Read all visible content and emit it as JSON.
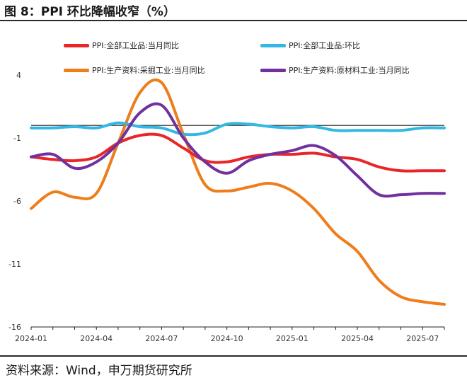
{
  "figure": {
    "title": "图 8：PPI 环比降幅收窄（%）",
    "source": "资料来源：Wind，申万期货研究所"
  },
  "colors": {
    "s1": "#e8262a",
    "s2": "#33b8e3",
    "s3": "#ee7d1a",
    "s4": "#7030a0"
  },
  "chart_data": {
    "type": "line",
    "title": "PPI 环比降幅收窄（%）",
    "xlabel": "",
    "ylabel": "",
    "ylim": [
      -16,
      4
    ],
    "yticks": [
      4,
      -1,
      -6,
      -11,
      -16
    ],
    "x": [
      "2024-01",
      "2024-02",
      "2024-03",
      "2024-04",
      "2024-05",
      "2024-06",
      "2024-07",
      "2024-08",
      "2024-09",
      "2024-10",
      "2024-11",
      "2024-12",
      "2025-01",
      "2025-02",
      "2025-03",
      "2025-04",
      "2025-05",
      "2025-06",
      "2025-07",
      "2025-08"
    ],
    "xtick_labels": [
      "2024-01",
      "2024-04",
      "2024-07",
      "2024-10",
      "2025-01",
      "2025-04",
      "2025-07"
    ],
    "xtick_index": [
      0,
      3,
      6,
      9,
      12,
      15,
      18
    ],
    "series": [
      {
        "name": "PPI:全部工业品:当月同比",
        "values": [
          -2.5,
          -2.7,
          -2.8,
          -2.5,
          -1.4,
          -0.8,
          -0.8,
          -1.8,
          -2.8,
          -2.9,
          -2.5,
          -2.3,
          -2.3,
          -2.2,
          -2.5,
          -2.7,
          -3.3,
          -3.6,
          -3.6,
          -3.6
        ]
      },
      {
        "name": "PPI:全部工业品:环比",
        "values": [
          -0.2,
          -0.2,
          -0.1,
          -0.2,
          0.2,
          -0.1,
          -0.2,
          -0.7,
          -0.6,
          0.1,
          0.1,
          -0.1,
          -0.2,
          -0.1,
          -0.4,
          -0.4,
          -0.4,
          -0.4,
          -0.2,
          -0.2
        ]
      },
      {
        "name": "PPI:生产资料:采掘工业:当月同比",
        "values": [
          -6.6,
          -5.3,
          -5.7,
          -5.4,
          -1.4,
          2.6,
          3.4,
          -0.7,
          -4.7,
          -5.2,
          -4.9,
          -4.6,
          -5.2,
          -6.6,
          -8.6,
          -10.0,
          -12.3,
          -13.6,
          -14.0,
          -14.2
        ]
      },
      {
        "name": "PPI:生产资料:原材料工业:当月同比",
        "values": [
          -2.5,
          -2.3,
          -3.4,
          -2.9,
          -1.4,
          1.0,
          1.6,
          -1.0,
          -2.9,
          -3.8,
          -2.8,
          -2.3,
          -2.0,
          -1.6,
          -2.4,
          -4.0,
          -5.5,
          -5.5,
          -5.4,
          -5.4
        ]
      }
    ],
    "legend": "top"
  }
}
